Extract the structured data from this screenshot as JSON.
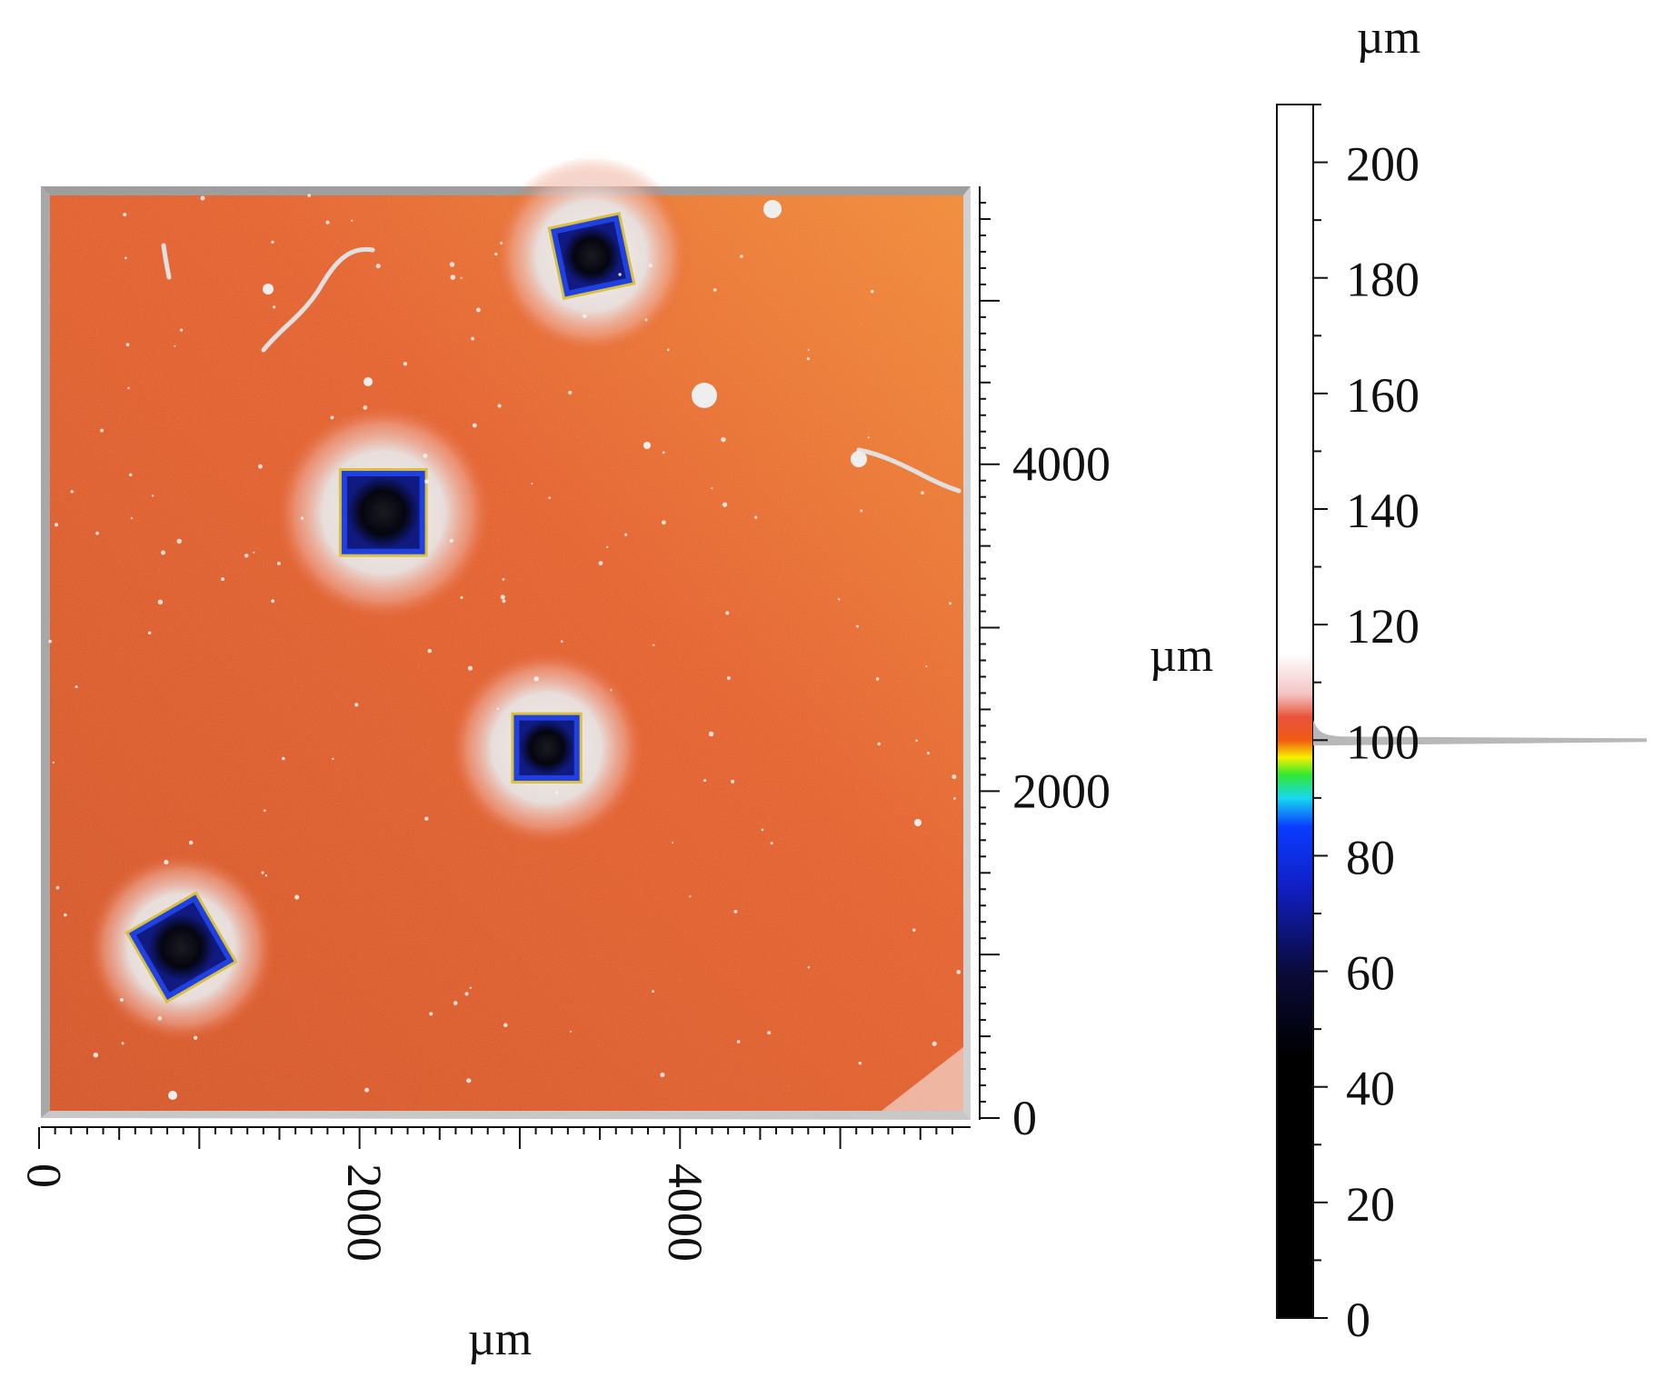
{
  "x_axis": {
    "label": "µm",
    "ticks": [
      {
        "value": 0,
        "label": "0"
      },
      {
        "value": 2000,
        "label": "2000"
      },
      {
        "value": 4000,
        "label": "4000"
      }
    ],
    "range": [
      0,
      5700
    ]
  },
  "y_axis": {
    "label": "µm",
    "ticks": [
      {
        "value": 0,
        "label": "0"
      },
      {
        "value": 2000,
        "label": "2000"
      },
      {
        "value": 4000,
        "label": "4000"
      }
    ],
    "range": [
      0,
      5600
    ]
  },
  "colorbar": {
    "unit_label": "µm",
    "range": [
      0,
      210
    ],
    "ticks": [
      {
        "value": 0,
        "label": "0"
      },
      {
        "value": 20,
        "label": "20"
      },
      {
        "value": 40,
        "label": "40"
      },
      {
        "value": 60,
        "label": "60"
      },
      {
        "value": 80,
        "label": "80"
      },
      {
        "value": 100,
        "label": "100"
      },
      {
        "value": 120,
        "label": "120"
      },
      {
        "value": 140,
        "label": "140"
      },
      {
        "value": 160,
        "label": "160"
      },
      {
        "value": 180,
        "label": "180"
      },
      {
        "value": 200,
        "label": "200"
      }
    ],
    "stops": [
      {
        "value": 0,
        "color": "#000000"
      },
      {
        "value": 45,
        "color": "#000000"
      },
      {
        "value": 60,
        "color": "#0a0a3a"
      },
      {
        "value": 75,
        "color": "#1020c8"
      },
      {
        "value": 85,
        "color": "#0a3cff"
      },
      {
        "value": 90,
        "color": "#18d8f0"
      },
      {
        "value": 94,
        "color": "#30e830"
      },
      {
        "value": 97,
        "color": "#f8f000"
      },
      {
        "value": 100,
        "color": "#f05a14"
      },
      {
        "value": 104,
        "color": "#e9543a"
      },
      {
        "value": 108,
        "color": "#f4c4c4"
      },
      {
        "value": 115,
        "color": "#ffffff"
      },
      {
        "value": 210,
        "color": "#ffffff"
      }
    ]
  },
  "colors": {
    "surface": "#e35a24",
    "surface_light": "#f07a30",
    "halo": "#e8e4e4",
    "pit_dark": "#050510",
    "pit_blue": "#1830d8",
    "frame": "#bdbdbd"
  },
  "indents": [
    {
      "x": 3380,
      "y": 5230,
      "size": 430,
      "angle": -12,
      "halo": 560
    },
    {
      "x": 2080,
      "y": 3660,
      "size": 520,
      "angle": 0,
      "halo": 700
    },
    {
      "x": 3100,
      "y": 2220,
      "size": 410,
      "angle": 0,
      "halo": 560
    },
    {
      "x": 820,
      "y": 1000,
      "size": 480,
      "angle": -30,
      "halo": 520
    }
  ]
}
